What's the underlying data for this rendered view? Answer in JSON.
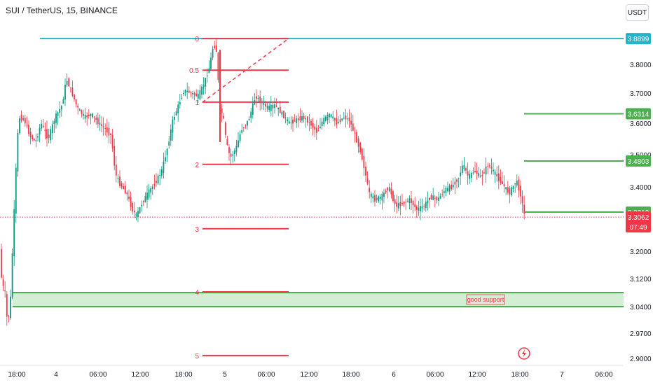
{
  "header": {
    "title": "SUI / TetherUS, 15, BINANCE",
    "currency": "USDT"
  },
  "colors": {
    "up": "#089981",
    "down": "#f23645",
    "green_line": "#4caf50",
    "teal_line": "#22b5c9",
    "fib_red": "#f23645",
    "support_fill": "#c8eacb"
  },
  "chart_data": {
    "type": "candlestick",
    "symbol": "SUI / TetherUS",
    "interval": "15",
    "exchange": "BINANCE",
    "ylim": [
      2.885,
      3.955
    ],
    "yticks": [
      "3.8000",
      "3.7000",
      "3.6000",
      "3.5000",
      "3.4000",
      "3.2000",
      "3.1200",
      "3.0400",
      "2.9700",
      "2.9000"
    ],
    "xticks": [
      "18:00",
      "4",
      "06:00",
      "12:00",
      "18:00",
      "5",
      "06:00",
      "12:00",
      "18:00",
      "6",
      "06:00",
      "12:00",
      "18:00",
      "7",
      "06:00"
    ],
    "price_path": [
      [
        0,
        3.23
      ],
      [
        4,
        3.1
      ],
      [
        8,
        3.09
      ],
      [
        12,
        2.99
      ],
      [
        16,
        3.05
      ],
      [
        20,
        3.25
      ],
      [
        24,
        3.45
      ],
      [
        28,
        3.62
      ],
      [
        36,
        3.61
      ],
      [
        44,
        3.56
      ],
      [
        52,
        3.54
      ],
      [
        60,
        3.6
      ],
      [
        70,
        3.55
      ],
      [
        80,
        3.62
      ],
      [
        90,
        3.66
      ],
      [
        96,
        3.75
      ],
      [
        104,
        3.7
      ],
      [
        112,
        3.65
      ],
      [
        122,
        3.62
      ],
      [
        132,
        3.63
      ],
      [
        142,
        3.6
      ],
      [
        152,
        3.58
      ],
      [
        160,
        3.56
      ],
      [
        166,
        3.44
      ],
      [
        172,
        3.41
      ],
      [
        182,
        3.38
      ],
      [
        190,
        3.33
      ],
      [
        196,
        3.31
      ],
      [
        204,
        3.35
      ],
      [
        212,
        3.38
      ],
      [
        222,
        3.41
      ],
      [
        232,
        3.45
      ],
      [
        240,
        3.52
      ],
      [
        248,
        3.61
      ],
      [
        256,
        3.66
      ],
      [
        264,
        3.71
      ],
      [
        274,
        3.7
      ],
      [
        284,
        3.69
      ],
      [
        292,
        3.73
      ],
      [
        300,
        3.79
      ],
      [
        306,
        3.87
      ],
      [
        310,
        3.85
      ],
      [
        315,
        3.65
      ],
      [
        320,
        3.62
      ],
      [
        324,
        3.54
      ],
      [
        330,
        3.49
      ],
      [
        338,
        3.52
      ],
      [
        346,
        3.58
      ],
      [
        356,
        3.61
      ],
      [
        366,
        3.69
      ],
      [
        374,
        3.67
      ],
      [
        384,
        3.65
      ],
      [
        394,
        3.66
      ],
      [
        404,
        3.63
      ],
      [
        414,
        3.6
      ],
      [
        424,
        3.61
      ],
      [
        434,
        3.62
      ],
      [
        444,
        3.6
      ],
      [
        454,
        3.57
      ],
      [
        462,
        3.61
      ],
      [
        472,
        3.63
      ],
      [
        482,
        3.6
      ],
      [
        492,
        3.62
      ],
      [
        500,
        3.61
      ],
      [
        508,
        3.56
      ],
      [
        516,
        3.51
      ],
      [
        522,
        3.45
      ],
      [
        528,
        3.38
      ],
      [
        536,
        3.36
      ],
      [
        546,
        3.37
      ],
      [
        556,
        3.4
      ],
      [
        566,
        3.34
      ],
      [
        576,
        3.35
      ],
      [
        586,
        3.36
      ],
      [
        596,
        3.33
      ],
      [
        606,
        3.34
      ],
      [
        616,
        3.37
      ],
      [
        626,
        3.36
      ],
      [
        636,
        3.39
      ],
      [
        646,
        3.4
      ],
      [
        656,
        3.43
      ],
      [
        662,
        3.47
      ],
      [
        670,
        3.43
      ],
      [
        678,
        3.45
      ],
      [
        688,
        3.43
      ],
      [
        698,
        3.47
      ],
      [
        708,
        3.44
      ],
      [
        718,
        3.41
      ],
      [
        728,
        3.38
      ],
      [
        738,
        3.42
      ],
      [
        744,
        3.38
      ],
      [
        750,
        3.31
      ]
    ],
    "horizontal_levels": [
      {
        "label": "3.8899",
        "value": 3.8899,
        "color": "teal",
        "x_start": 57
      },
      {
        "label": "3.6314",
        "value": 3.6314,
        "color": "green",
        "x_start": 748
      },
      {
        "label": "3.4803",
        "value": 3.4803,
        "color": "green",
        "x_start": 748
      },
      {
        "label": "3.3218",
        "value": 3.3218,
        "color": "green",
        "x_start": 748
      }
    ],
    "last_price": {
      "value": 3.3062,
      "label": "3.3062",
      "countdown": "07:49"
    },
    "support_zone": {
      "label": "good support",
      "top": 3.08,
      "bottom": 3.04
    },
    "fib_levels": [
      {
        "label": "0",
        "value": 3.89
      },
      {
        "label": "0.5",
        "value": 3.78
      },
      {
        "label": "1",
        "value": 3.67
      },
      {
        "label": "2",
        "value": 3.47
      },
      {
        "label": "3",
        "value": 3.27
      },
      {
        "label": "4",
        "value": 3.082
      },
      {
        "label": "5",
        "value": 2.908
      }
    ]
  }
}
